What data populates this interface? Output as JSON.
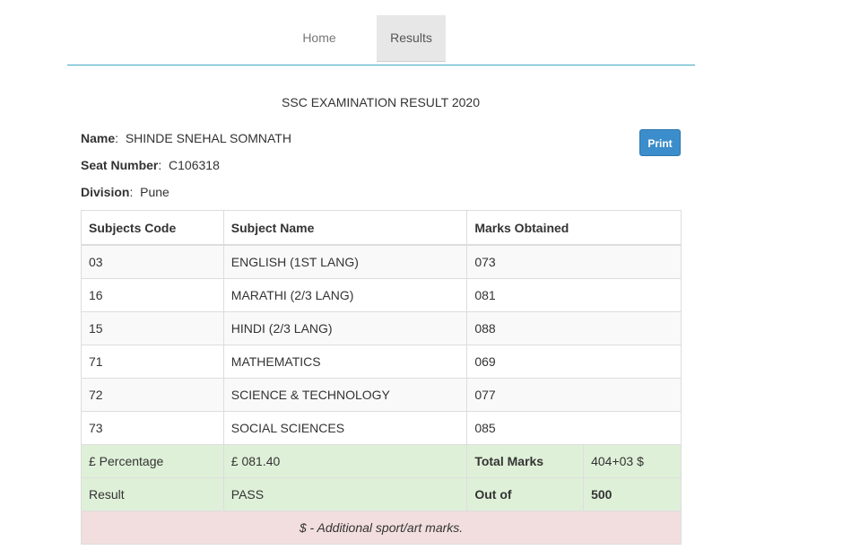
{
  "nav": {
    "home": "Home",
    "results": "Results"
  },
  "title": "SSC EXAMINATION RESULT 2020",
  "student": {
    "name_label": "Name",
    "name": "SHINDE SNEHAL SOMNATH",
    "seat_label": "Seat Number",
    "seat": "C106318",
    "division_label": "Division",
    "division": "Pune"
  },
  "print_label": "Print",
  "table": {
    "headers": [
      "Subjects Code",
      "Subject Name",
      "Marks Obtained"
    ],
    "rows": [
      {
        "code": "03",
        "name": "ENGLISH (1ST LANG)",
        "marks": "073"
      },
      {
        "code": "16",
        "name": "MARATHI (2/3 LANG)",
        "marks": "081"
      },
      {
        "code": "15",
        "name": "HINDI (2/3 LANG)",
        "marks": "088"
      },
      {
        "code": "71",
        "name": "MATHEMATICS",
        "marks": "069"
      },
      {
        "code": "72",
        "name": "SCIENCE & TECHNOLOGY",
        "marks": "077"
      },
      {
        "code": "73",
        "name": "SOCIAL SCIENCES",
        "marks": "085"
      }
    ],
    "percentage_label": "£ Percentage",
    "percentage": "£ 081.40",
    "total_label": "Total Marks",
    "total": "404+03 $",
    "result_label": "Result",
    "result": "PASS",
    "outof_label": "Out of",
    "outof": "500",
    "note": "$ - Additional sport/art marks."
  }
}
